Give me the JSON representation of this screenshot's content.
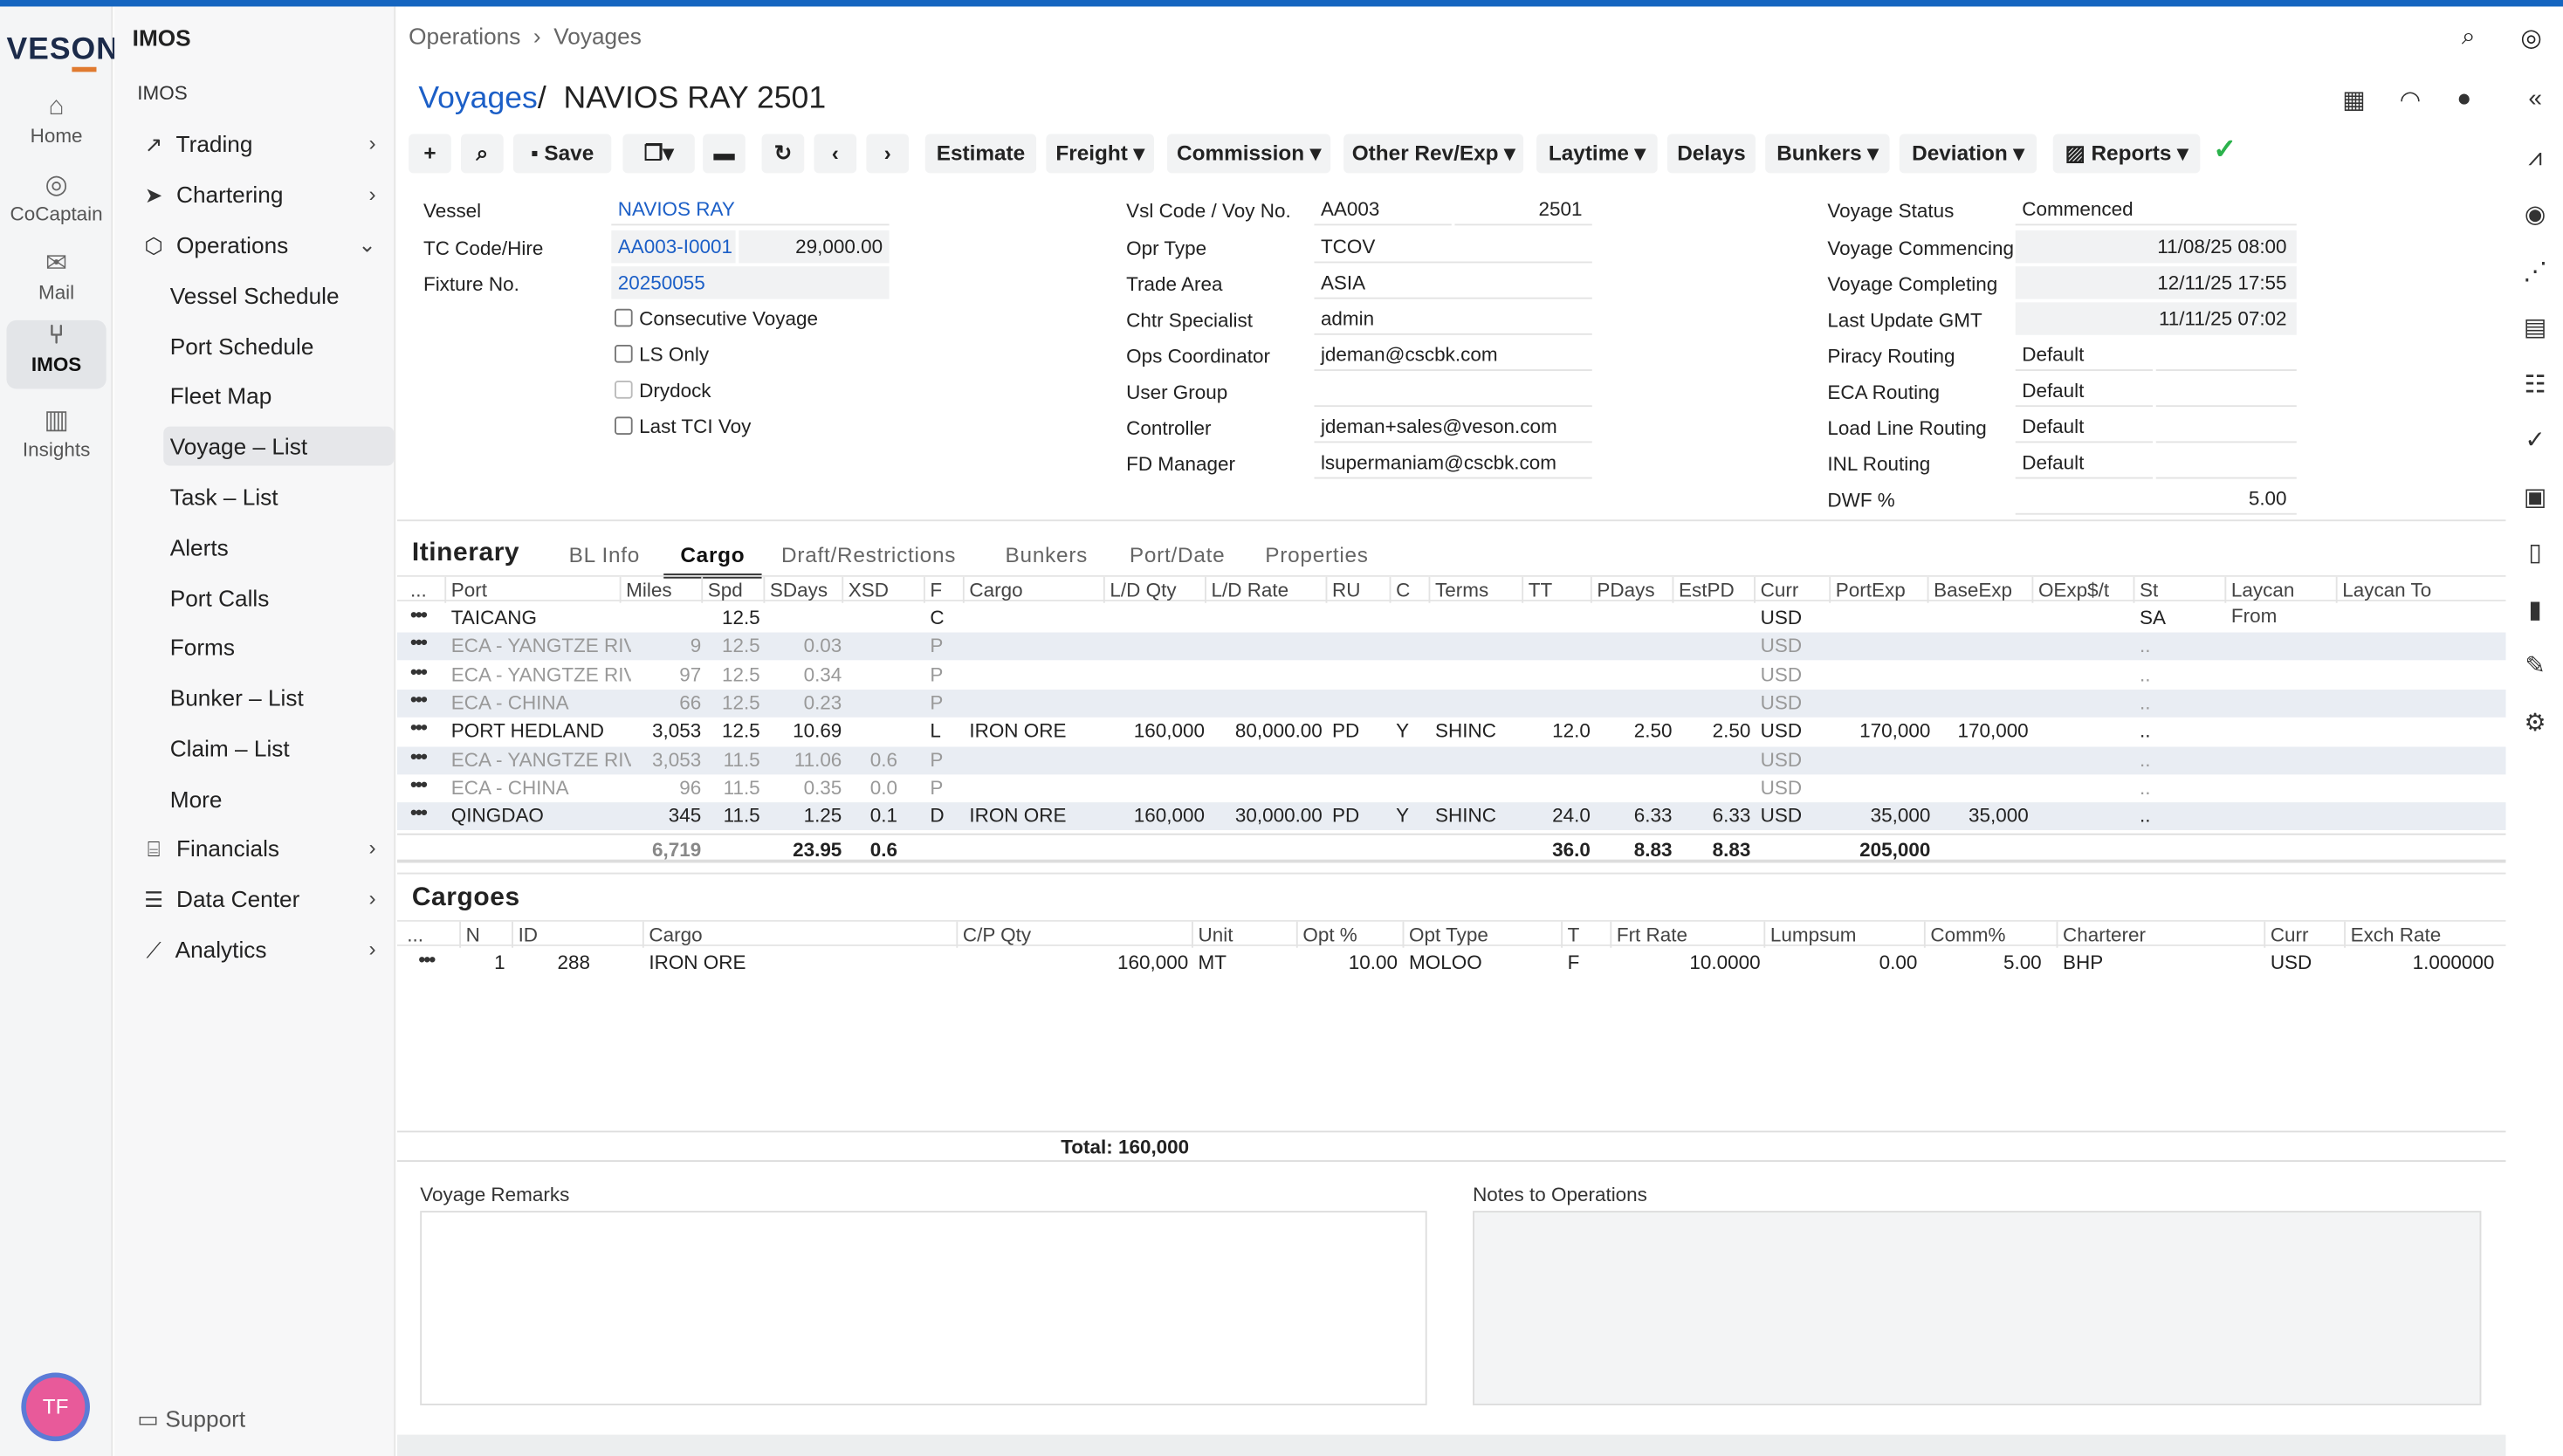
{
  "rail": {
    "logo": "VESON",
    "items": [
      {
        "label": "Home",
        "icon": "home-icon"
      },
      {
        "label": "CoCaptain",
        "icon": "cocaptain-icon"
      },
      {
        "label": "Mail",
        "icon": "mail-icon"
      },
      {
        "label": "IMOS",
        "icon": "imos-icon"
      },
      {
        "label": "Insights",
        "icon": "insights-icon"
      }
    ],
    "avatar": "TF"
  },
  "nav": {
    "app": "IMOS",
    "sub": "IMOS",
    "items": [
      "Trading",
      "Chartering",
      "Operations"
    ],
    "children": [
      "Vessel Schedule",
      "Port Schedule",
      "Fleet Map",
      "Voyage – List",
      "Task – List",
      "Alerts",
      "Port Calls",
      "Forms",
      "Bunker – List",
      "Claim – List",
      "More"
    ],
    "after": [
      "Financials",
      "Data Center",
      "Analytics"
    ],
    "support": "Support"
  },
  "breadcrumb": {
    "a": "Operations",
    "sep": "›",
    "b": "Voyages"
  },
  "title": {
    "link": "Voyages",
    "sep": "/",
    "name": "NAVIOS RAY 2501"
  },
  "toolbar": {
    "save": "Save",
    "estimate": "Estimate",
    "freight": "Freight ▾",
    "commission": "Commission ▾",
    "other": "Other Rev/Exp ▾",
    "laytime": "Laytime ▾",
    "delays": "Delays",
    "bunkers": "Bunkers ▾",
    "deviation": "Deviation ▾",
    "reports": "Reports ▾"
  },
  "form": {
    "vessel_l": "Vessel",
    "vessel": "NAVIOS RAY",
    "tc_l": "TC Code/Hire",
    "tc": "AA003-I0001",
    "hire": "29,000.00",
    "fix_l": "Fixture No.",
    "fix": "20250055",
    "cb1": "Consecutive Voyage",
    "cb2": "LS Only",
    "cb3": "Drydock",
    "cb4": "Last TCI Voy",
    "vsl_l": "Vsl Code / Voy No.",
    "vsl": "AA003",
    "voy": "2501",
    "opr_l": "Opr Type",
    "opr": "TCOV",
    "trade_l": "Trade Area",
    "trade": "ASIA",
    "chtr_l": "Chtr Specialist",
    "chtr": "admin",
    "ops_l": "Ops Coordinator",
    "ops": "jdeman@cscbk.com",
    "ug_l": "User Group",
    "ctrl_l": "Controller",
    "ctrl": "jdeman+sales@veson.com",
    "fd_l": "FD Manager",
    "fd": "lsupermaniam@cscbk.com",
    "vs_l": "Voyage Status",
    "vs": "Commenced",
    "vc_l": "Voyage Commencing",
    "vc": "11/08/25 08:00",
    "vcp_l": "Voyage Completing",
    "vcp": "12/11/25 17:55",
    "lu_l": "Last Update GMT",
    "lu": "11/11/25 07:02",
    "pr_l": "Piracy Routing",
    "pr": "Default",
    "eca_l": "ECA Routing",
    "eca": "Default",
    "ll_l": "Load Line Routing",
    "ll": "Default",
    "inl_l": "INL Routing",
    "inl": "Default",
    "dwf_l": "DWF %",
    "dwf": "5.00"
  },
  "itinerary": {
    "title": "Itinerary",
    "tabs": [
      "BL Info",
      "Cargo",
      "Draft/Restrictions",
      "Bunkers",
      "Port/Date",
      "Properties"
    ],
    "headers": [
      "...",
      "Port",
      "Miles",
      "Spd",
      "SDays",
      "XSD",
      "F",
      "Cargo",
      "L/D Qty",
      "L/D Rate",
      "RU",
      "C",
      "Terms",
      "TT",
      "PDays",
      "EstPD",
      "Curr",
      "PortExp",
      "BaseExp",
      "OExp$/t",
      "St",
      "Laycan From",
      "Laycan To"
    ],
    "rows": [
      [
        "TAICANG",
        "",
        "12.5",
        "",
        "",
        "C",
        "",
        "",
        "",
        "",
        "",
        "",
        "",
        "",
        "",
        "USD",
        "",
        "",
        "",
        "SA"
      ],
      [
        "ECA - YANGTZE RIV",
        "9",
        "12.5",
        "0.03",
        "",
        "P",
        "",
        "",
        "",
        "",
        "",
        "",
        "",
        "",
        "",
        "USD",
        "",
        "",
        "",
        ".."
      ],
      [
        "ECA - YANGTZE RIV",
        "97",
        "12.5",
        "0.34",
        "",
        "P",
        "",
        "",
        "",
        "",
        "",
        "",
        "",
        "",
        "",
        "USD",
        "",
        "",
        "",
        ".."
      ],
      [
        "ECA - CHINA",
        "66",
        "12.5",
        "0.23",
        "",
        "P",
        "",
        "",
        "",
        "",
        "",
        "",
        "",
        "",
        "",
        "USD",
        "",
        "",
        "",
        ".."
      ],
      [
        "PORT HEDLAND",
        "3,053",
        "12.5",
        "10.69",
        "",
        "L",
        "IRON ORE",
        "160,000",
        "80,000.00",
        "PD",
        "Y",
        "SHINC",
        "12.0",
        "2.50",
        "2.50",
        "USD",
        "170,000",
        "170,000",
        "",
        ".."
      ],
      [
        "ECA - YANGTZE RIV",
        "3,053",
        "11.5",
        "11.06",
        "0.6",
        "P",
        "",
        "",
        "",
        "",
        "",
        "",
        "",
        "",
        "",
        "USD",
        "",
        "",
        "",
        ".."
      ],
      [
        "ECA - CHINA",
        "96",
        "11.5",
        "0.35",
        "0.0",
        "P",
        "",
        "",
        "",
        "",
        "",
        "",
        "",
        "",
        "",
        "USD",
        "",
        "",
        "",
        ".."
      ],
      [
        "QINGDAO",
        "345",
        "11.5",
        "1.25",
        "0.1",
        "D",
        "IRON ORE",
        "160,000",
        "30,000.00",
        "PD",
        "Y",
        "SHINC",
        "24.0",
        "6.33",
        "6.33",
        "USD",
        "35,000",
        "35,000",
        "",
        ".."
      ]
    ],
    "totals": {
      "miles": "6,719",
      "sdays": "23.95",
      "xsd": "0.6",
      "tt": "36.0",
      "pdays": "8.83",
      "estpd": "8.83",
      "portexp": "205,000"
    }
  },
  "cargoes": {
    "title": "Cargoes",
    "headers": [
      "...",
      "N",
      "ID",
      "Cargo",
      "C/P Qty",
      "Unit",
      "Opt %",
      "Opt Type",
      "T",
      "Frt Rate",
      "Lumpsum",
      "Comm%",
      "Charterer",
      "Curr",
      "Exch Rate"
    ],
    "rows": [
      [
        "1",
        "288",
        "IRON ORE",
        "160,000",
        "MT",
        "10.00",
        "MOLOO",
        "F",
        "10.0000",
        "0.00",
        "5.00",
        "BHP",
        "USD",
        "1.000000"
      ]
    ],
    "total": "Total: 160,000"
  },
  "remarks": {
    "voyage": "Voyage Remarks",
    "notes": "Notes to Operations"
  }
}
